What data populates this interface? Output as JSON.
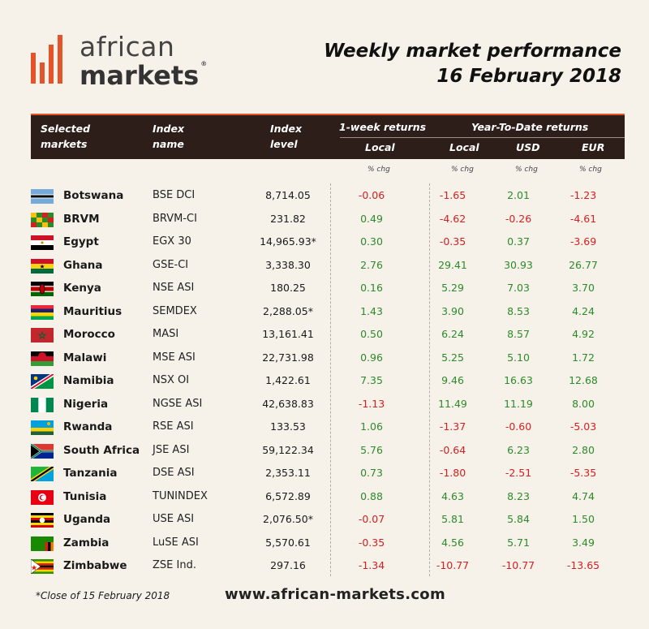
{
  "brand": {
    "line1": "african",
    "line2": "markets",
    "reg": "®"
  },
  "title": {
    "line1": "Weekly market performance",
    "line2": "16 February 2018"
  },
  "header": {
    "col_markets_1": "Selected",
    "col_markets_2": "markets",
    "col_index_1": "Index",
    "col_index_2": "name",
    "col_level_1": "Index",
    "col_level_2": "level",
    "week_returns": "1-week returns",
    "ytd_returns": "Year-To-Date returns",
    "local": "Local",
    "ytd_local": "Local",
    "usd": "USD",
    "eur": "EUR"
  },
  "units": {
    "week": "% chg",
    "ytd_local": "% chg",
    "usd": "% chg",
    "eur": "% chg"
  },
  "colors": {
    "accent": "#e3542b",
    "header_bg": "#2e1e1a",
    "positive": "#2d8a2b",
    "negative": "#d42020",
    "page_bg": "#f6f1e9"
  },
  "rows": [
    {
      "country": "Botswana",
      "flag": "botswana-flag",
      "index": "BSE DCI",
      "level": "8,714.05",
      "week": "-0.06",
      "ytd_local": "-1.65",
      "usd": "2.01",
      "eur": "-1.23"
    },
    {
      "country": "BRVM",
      "flag": "brvm-flag",
      "index": "BRVM-CI",
      "level": "231.82",
      "week": "0.49",
      "ytd_local": "-4.62",
      "usd": "-0.26",
      "eur": "-4.61"
    },
    {
      "country": "Egypt",
      "flag": "egypt-flag",
      "index": "EGX 30",
      "level": "14,965.93*",
      "week": "0.30",
      "ytd_local": "-0.35",
      "usd": "0.37",
      "eur": "-3.69"
    },
    {
      "country": "Ghana",
      "flag": "ghana-flag",
      "index": "GSE-CI",
      "level": "3,338.30",
      "week": "2.76",
      "ytd_local": "29.41",
      "usd": "30.93",
      "eur": "26.77"
    },
    {
      "country": "Kenya",
      "flag": "kenya-flag",
      "index": "NSE ASI",
      "level": "180.25",
      "week": "0.16",
      "ytd_local": "5.29",
      "usd": "7.03",
      "eur": "3.70"
    },
    {
      "country": "Mauritius",
      "flag": "mauritius-flag",
      "index": "SEMDEX",
      "level": "2,288.05*",
      "week": "1.43",
      "ytd_local": "3.90",
      "usd": "8.53",
      "eur": "4.24"
    },
    {
      "country": "Morocco",
      "flag": "morocco-flag",
      "index": "MASI",
      "level": "13,161.41",
      "week": "0.50",
      "ytd_local": "6.24",
      "usd": "8.57",
      "eur": "4.92"
    },
    {
      "country": "Malawi",
      "flag": "malawi-flag",
      "index": "MSE ASI",
      "level": "22,731.98",
      "week": "0.96",
      "ytd_local": "5.25",
      "usd": "5.10",
      "eur": "1.72"
    },
    {
      "country": "Namibia",
      "flag": "namibia-flag",
      "index": "NSX OI",
      "level": "1,422.61",
      "week": "7.35",
      "ytd_local": "9.46",
      "usd": "16.63",
      "eur": "12.68"
    },
    {
      "country": "Nigeria",
      "flag": "nigeria-flag",
      "index": "NGSE ASI",
      "level": "42,638.83",
      "week": "-1.13",
      "ytd_local": "11.49",
      "usd": "11.19",
      "eur": "8.00"
    },
    {
      "country": "Rwanda",
      "flag": "rwanda-flag",
      "index": "RSE ASI",
      "level": "133.53",
      "week": "1.06",
      "ytd_local": "-1.37",
      "usd": "-0.60",
      "eur": "-5.03"
    },
    {
      "country": "South Africa",
      "flag": "south-africa-flag",
      "index": "JSE ASI",
      "level": "59,122.34",
      "week": "5.76",
      "ytd_local": "-0.64",
      "usd": "6.23",
      "eur": "2.80"
    },
    {
      "country": "Tanzania",
      "flag": "tanzania-flag",
      "index": "DSE ASI",
      "level": "2,353.11",
      "week": "0.73",
      "ytd_local": "-1.80",
      "usd": "-2.51",
      "eur": "-5.35"
    },
    {
      "country": "Tunisia",
      "flag": "tunisia-flag",
      "index": "TUNINDEX",
      "level": "6,572.89",
      "week": "0.88",
      "ytd_local": "4.63",
      "usd": "8.23",
      "eur": "4.74"
    },
    {
      "country": "Uganda",
      "flag": "uganda-flag",
      "index": "USE ASI",
      "level": "2,076.50*",
      "week": "-0.07",
      "ytd_local": "5.81",
      "usd": "5.84",
      "eur": "1.50"
    },
    {
      "country": "Zambia",
      "flag": "zambia-flag",
      "index": "LuSE ASI",
      "level": "5,570.61",
      "week": "-0.35",
      "ytd_local": "4.56",
      "usd": "5.71",
      "eur": "3.49"
    },
    {
      "country": "Zimbabwe",
      "flag": "zimbabwe-flag",
      "index": "ZSE Ind.",
      "level": "297.16",
      "week": "-1.34",
      "ytd_local": "-10.77",
      "usd": "-10.77",
      "eur": "-13.65"
    }
  ],
  "footnote": "*Close of 15 February 2018",
  "url": "www.african-markets.com"
}
